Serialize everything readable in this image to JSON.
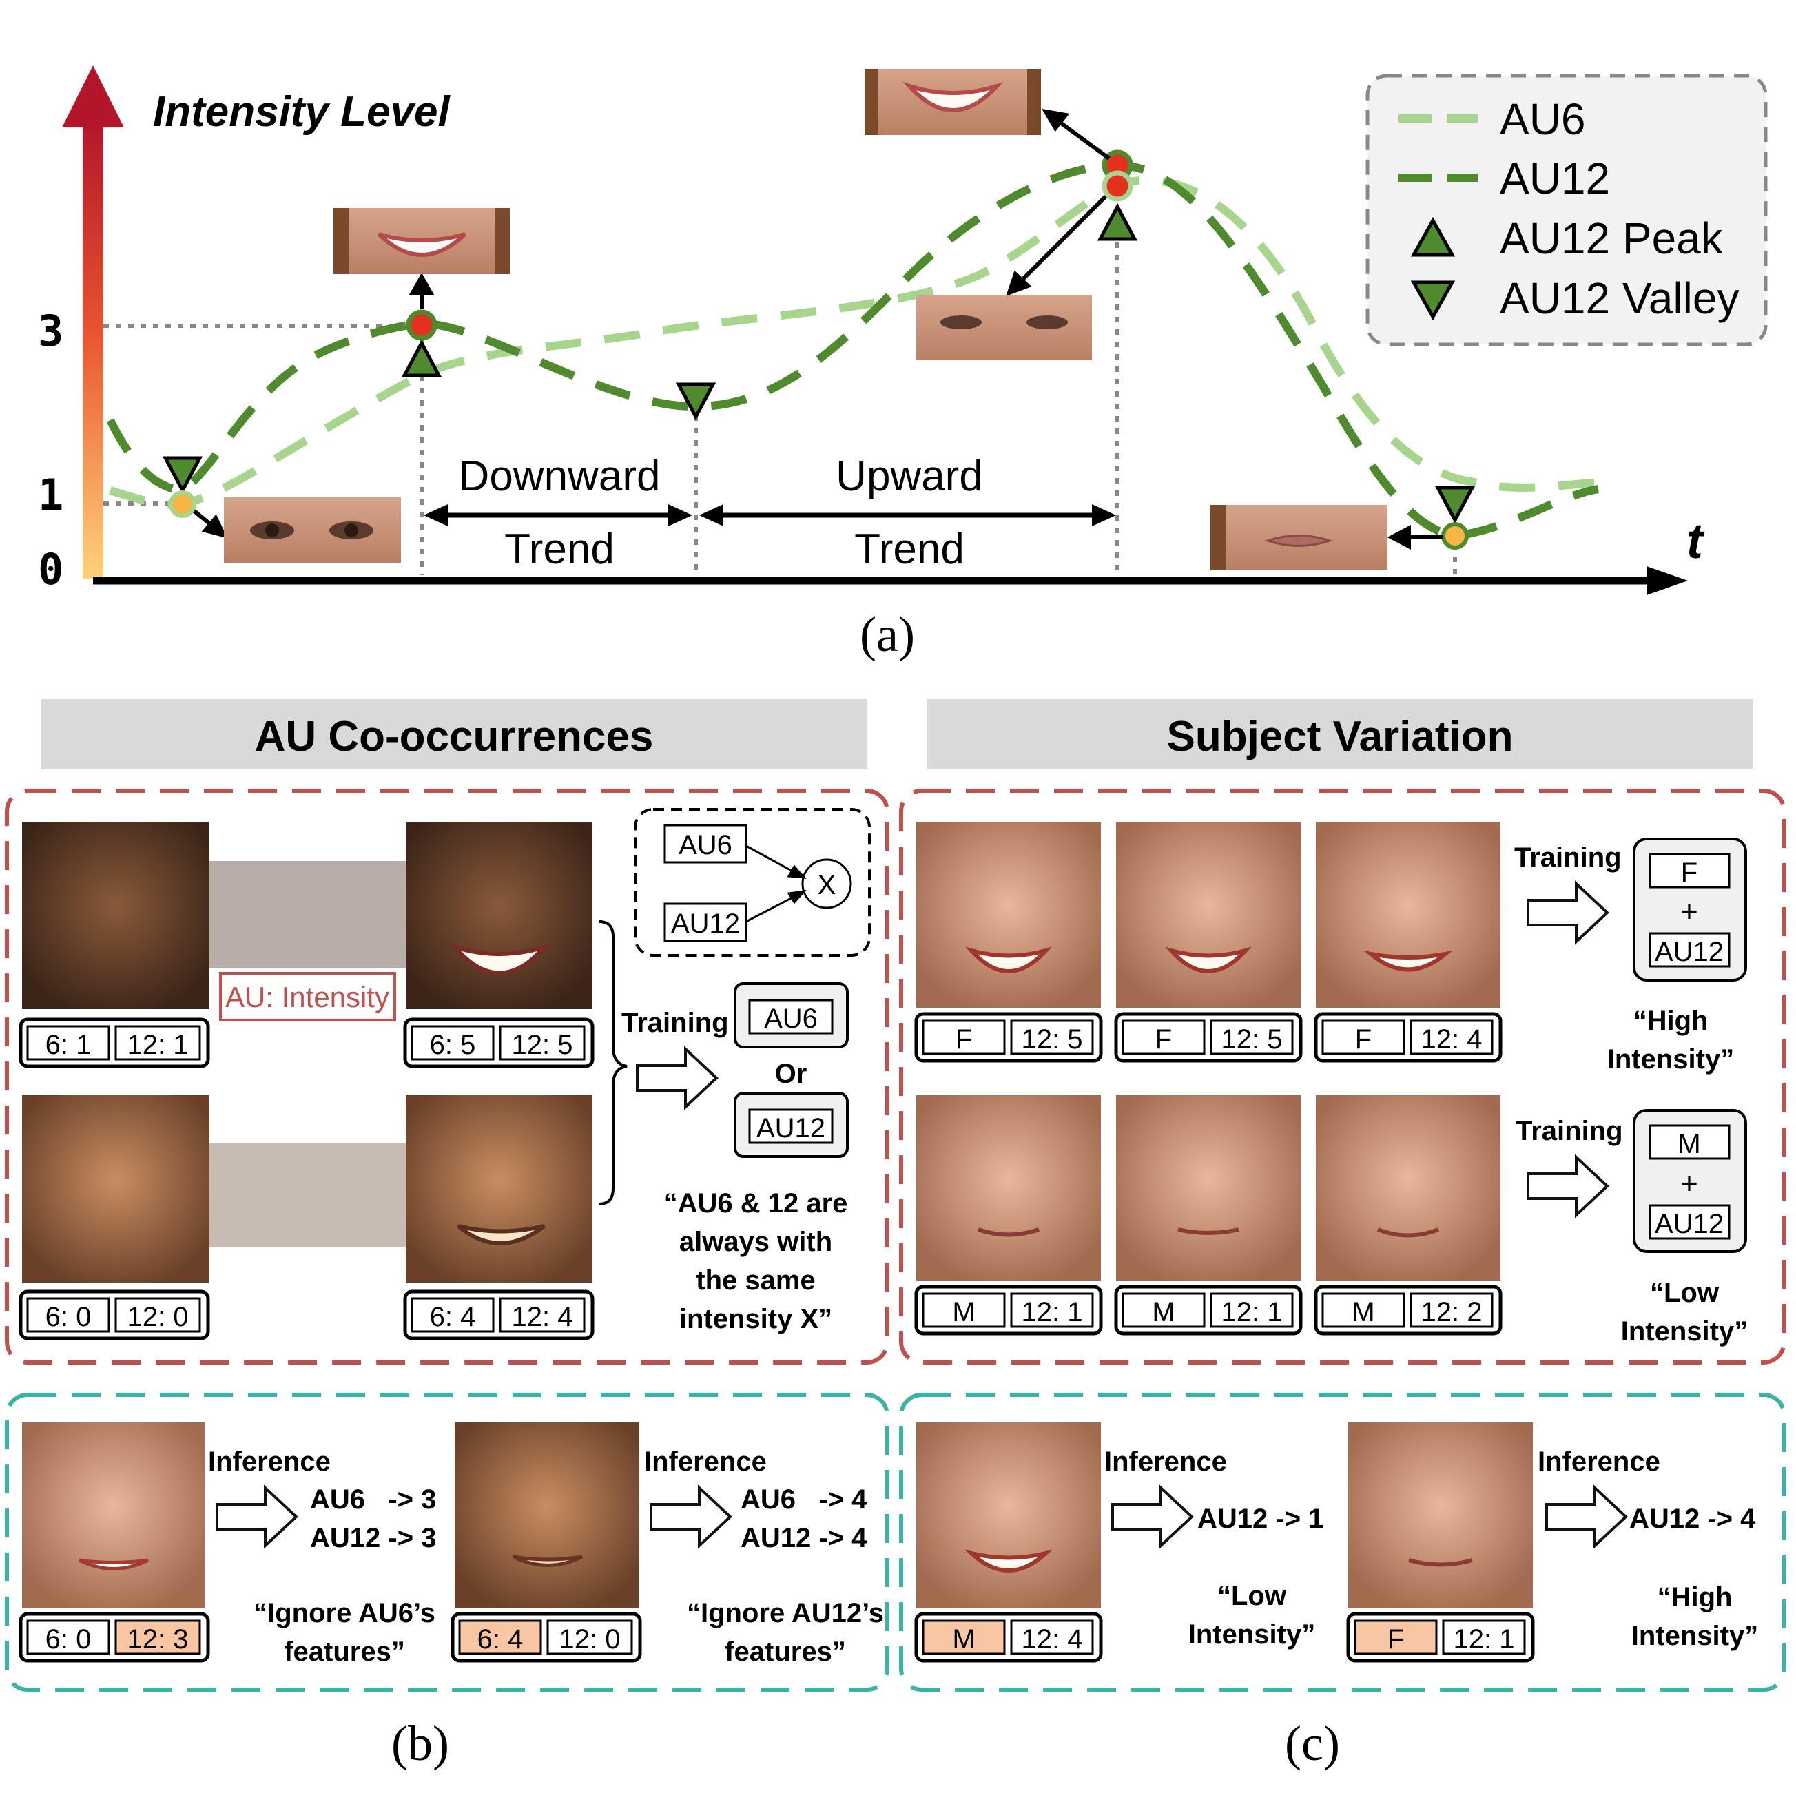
{
  "panel_a": {
    "y_axis_title": "Intensity Level",
    "y_ticks": [
      "3",
      "1",
      "0"
    ],
    "x_axis_label": "t",
    "downward": [
      "Downward",
      "Trend"
    ],
    "upward": [
      "Upward",
      "Trend"
    ],
    "legend": {
      "au6": "AU6",
      "au12": "AU12",
      "peak": "AU12 Peak",
      "valley": "AU12 Valley"
    },
    "colors": {
      "au6": "#a8d58e",
      "au12": "#4f8a2e",
      "axis_top": "#b3162b",
      "axis_bottom": "#ffc96b",
      "marker_red": "#e3301f",
      "marker_orange": "#f6b544"
    },
    "caption": "(a)"
  },
  "panel_b": {
    "header": "AU Co-occurrences",
    "au_intensity_note": "AU: Intensity",
    "pair1_left": [
      "6: 1",
      "12: 1"
    ],
    "pair1_right": [
      "6: 5",
      "12: 5"
    ],
    "pair2_left": [
      "6: 0",
      "12: 0"
    ],
    "pair2_right": [
      "6: 4",
      "12: 4"
    ],
    "graph_nodes": [
      "AU6",
      "AU12",
      "X"
    ],
    "training_label": "Training",
    "option_a": "AU6",
    "or_label": "Or",
    "option_b": "AU12",
    "quote": [
      "“AU6 & 12 are",
      "always with",
      "the same",
      "intensity X”"
    ],
    "inference_label": "Inference",
    "infer1_labels": [
      "6: 0",
      "12: 3"
    ],
    "infer1_results": [
      "AU6   -> 3",
      "AU12 -> 3"
    ],
    "infer1_quote": [
      "“Ignore AU6’s",
      "features”"
    ],
    "infer2_labels": [
      "6: 4",
      "12: 0"
    ],
    "infer2_results": [
      "AU6   -> 4",
      "AU12 -> 4"
    ],
    "infer2_quote": [
      "“Ignore AU12’s",
      "features”"
    ],
    "caption": "(b)"
  },
  "panel_c": {
    "header": "Subject Variation",
    "female_labels": [
      [
        "F",
        "12: 5"
      ],
      [
        "F",
        "12: 5"
      ],
      [
        "F",
        "12: 4"
      ]
    ],
    "male_labels": [
      [
        "M",
        "12: 1"
      ],
      [
        "M",
        "12: 1"
      ],
      [
        "M",
        "12: 2"
      ]
    ],
    "training_label": "Training",
    "female_box": [
      "F",
      "+",
      "AU12"
    ],
    "male_box": [
      "M",
      "+",
      "AU12"
    ],
    "high_quote": [
      "“High",
      "Intensity”"
    ],
    "low_quote": [
      "“Low",
      "Intensity”"
    ],
    "inference_label": "Inference",
    "infer1_labels": [
      "M",
      "12: 4"
    ],
    "infer1_result": "AU12 -> 1",
    "infer1_quote": [
      "“Low",
      "Intensity”"
    ],
    "infer2_labels": [
      "F",
      "12: 1"
    ],
    "infer2_result": "AU12 -> 4",
    "infer2_quote": [
      "“High",
      "Intensity”"
    ],
    "caption": "(c)"
  }
}
